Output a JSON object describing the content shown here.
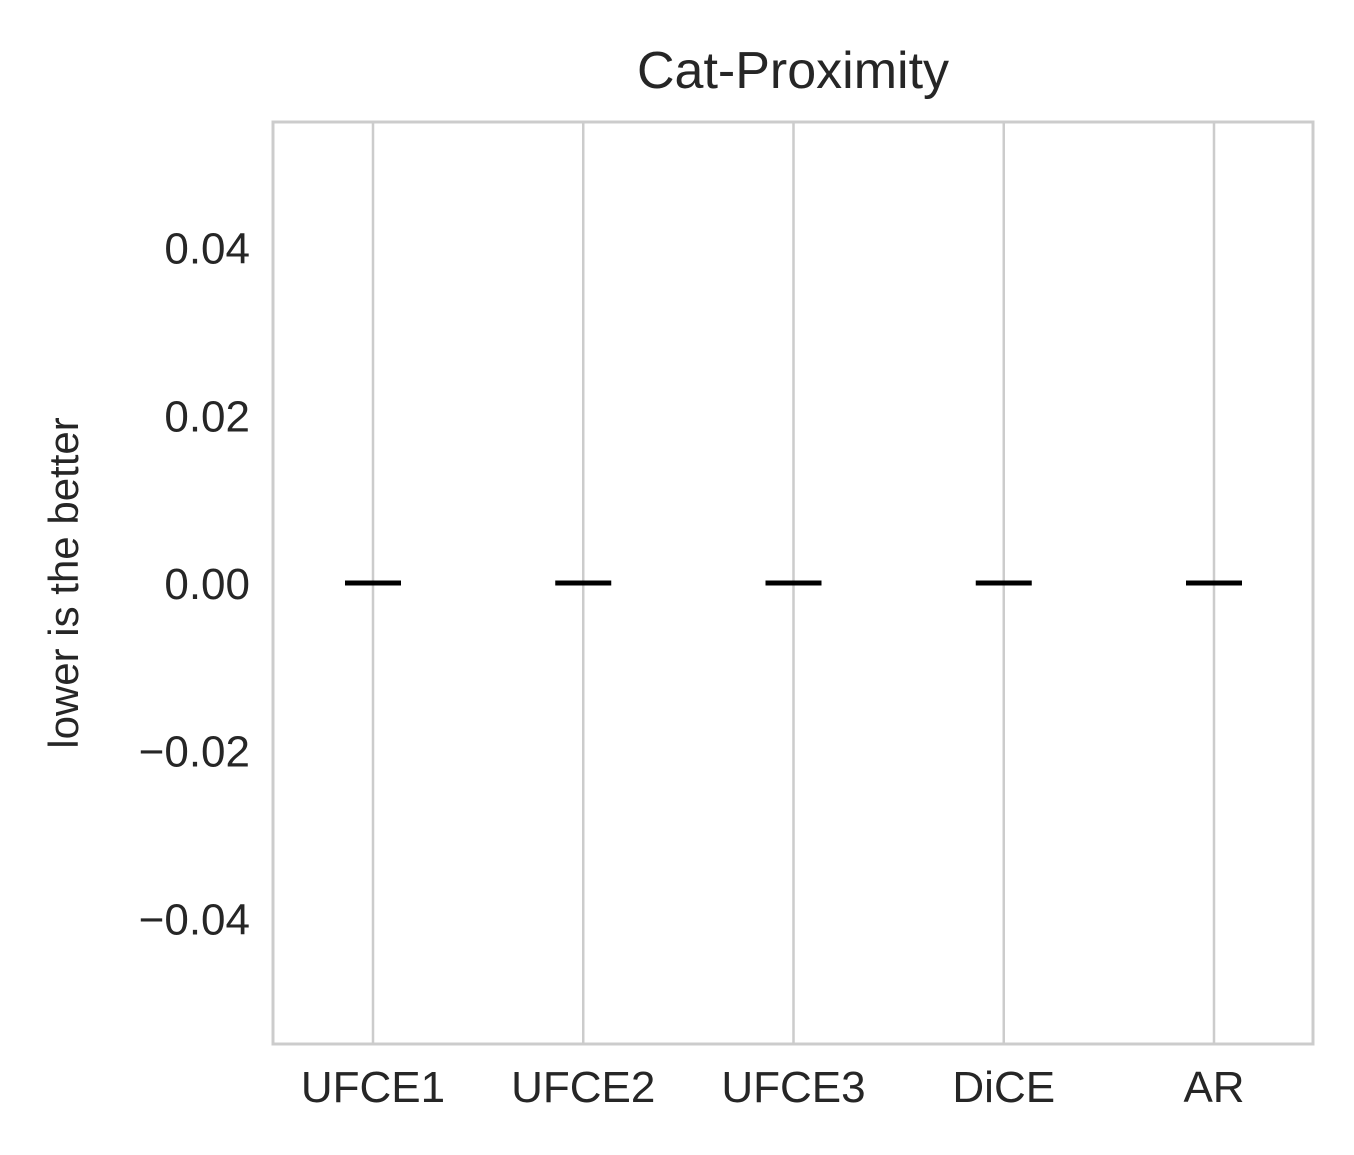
{
  "chart_data": {
    "type": "box",
    "title": "Cat-Proximity",
    "xlabel": "",
    "ylabel": "lower is the better",
    "categories": [
      "UFCE1",
      "UFCE2",
      "UFCE3",
      "DiCE",
      "AR"
    ],
    "values": [
      0.0,
      0.0,
      0.0,
      0.0,
      0.0
    ],
    "ylim": [
      -0.055,
      0.055
    ],
    "yticks": [
      0.04,
      0.02,
      0.0,
      -0.02,
      -0.04
    ],
    "ytick_labels": [
      "0.04",
      "0.02",
      "0.00",
      "−0.02",
      "−0.04"
    ],
    "grid": "vertical",
    "colors": {
      "grid": "#cccccc",
      "median": "#000000",
      "text": "#262626"
    }
  }
}
